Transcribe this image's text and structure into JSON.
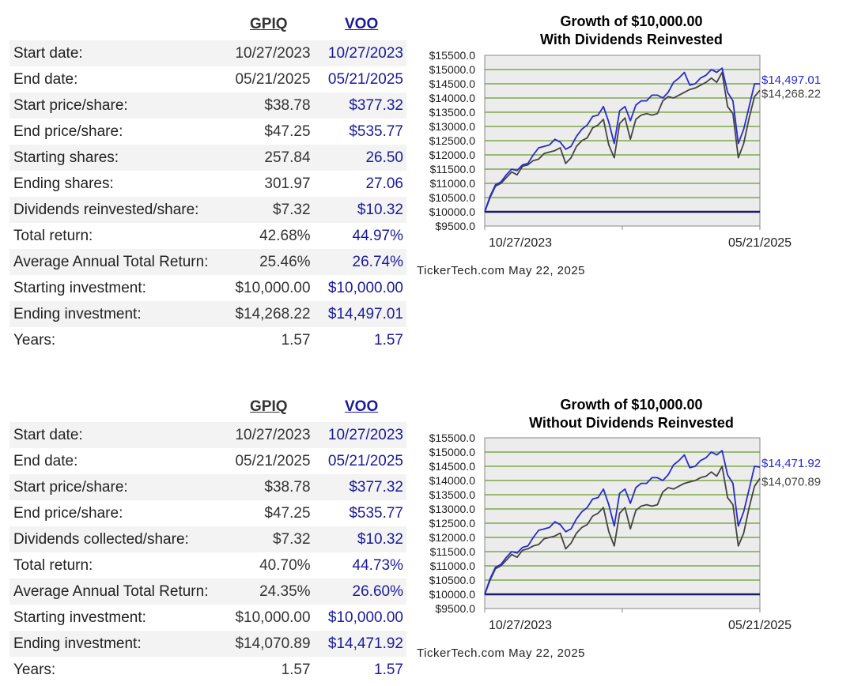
{
  "sections": [
    {
      "headers": {
        "gpiq": "GPIQ",
        "voo": "VOO"
      },
      "rows": [
        {
          "label": "Start date:",
          "gpiq": "10/27/2023",
          "voo": "10/27/2023"
        },
        {
          "label": "End date:",
          "gpiq": "05/21/2025",
          "voo": "05/21/2025"
        },
        {
          "label": "Start price/share:",
          "gpiq": "$38.78",
          "voo": "$377.32"
        },
        {
          "label": "End price/share:",
          "gpiq": "$47.25",
          "voo": "$535.77"
        },
        {
          "label": "Starting shares:",
          "gpiq": "257.84",
          "voo": "26.50"
        },
        {
          "label": "Ending shares:",
          "gpiq": "301.97",
          "voo": "27.06"
        },
        {
          "label": "Dividends reinvested/share:",
          "gpiq": "$7.32",
          "voo": "$10.32"
        },
        {
          "label": "Total return:",
          "gpiq": "42.68%",
          "voo": "44.97%"
        },
        {
          "label": "Average Annual Total Return:",
          "gpiq": "25.46%",
          "voo": "26.74%"
        },
        {
          "label": "Starting investment:",
          "gpiq": "$10,000.00",
          "voo": "$10,000.00"
        },
        {
          "label": "Ending investment:",
          "gpiq": "$14,268.22",
          "voo": "$14,497.01"
        },
        {
          "label": "Years:",
          "gpiq": "1.57",
          "voo": "1.57"
        }
      ],
      "chart_title_line1": "Growth of $10,000.00",
      "chart_title_line2": "With Dividends Reinvested",
      "credit": "TickerTech.com  May 22, 2025"
    },
    {
      "headers": {
        "gpiq": "GPIQ",
        "voo": "VOO"
      },
      "rows": [
        {
          "label": "Start date:",
          "gpiq": "10/27/2023",
          "voo": "10/27/2023"
        },
        {
          "label": "End date:",
          "gpiq": "05/21/2025",
          "voo": "05/21/2025"
        },
        {
          "label": "Start price/share:",
          "gpiq": "$38.78",
          "voo": "$377.32"
        },
        {
          "label": "End price/share:",
          "gpiq": "$47.25",
          "voo": "$535.77"
        },
        {
          "label": "Dividends collected/share:",
          "gpiq": "$7.32",
          "voo": "$10.32"
        },
        {
          "label": "Total return:",
          "gpiq": "40.70%",
          "voo": "44.73%"
        },
        {
          "label": "Average Annual Total Return:",
          "gpiq": "24.35%",
          "voo": "26.60%"
        },
        {
          "label": "Starting investment:",
          "gpiq": "$10,000.00",
          "voo": "$10,000.00"
        },
        {
          "label": "Ending investment:",
          "gpiq": "$14,070.89",
          "voo": "$14,471.92"
        },
        {
          "label": "Years:",
          "gpiq": "1.57",
          "voo": "1.57"
        }
      ],
      "chart_title_line1": "Growth of $10,000.00",
      "chart_title_line2": "Without Dividends Reinvested",
      "credit": "TickerTech.com  May 22, 2025"
    }
  ],
  "chart_data": [
    {
      "type": "line",
      "title": "Growth of $10,000.00 With Dividends Reinvested",
      "x_tick_labels": [
        "10/27/2023",
        "05/21/2025"
      ],
      "y_ticks": [
        "$15500.0",
        "$15000.0",
        "$14500.0",
        "$14000.0",
        "$13500.0",
        "$13000.0",
        "$12500.0",
        "$12000.0",
        "$11500.0",
        "$11000.0",
        "$10500.0",
        "$10000.0",
        "$9500.0"
      ],
      "ylim": [
        9500,
        15500
      ],
      "grid": true,
      "baseline": 10000,
      "colors": {
        "voo": "#2a2ad0",
        "gpiq": "#444444",
        "grid": "#6a9a2a",
        "plot_bg": "#ececec",
        "baseline": "#1a1a6a"
      },
      "series": [
        {
          "name": "VOO",
          "end_label": "$14,497.01",
          "values": [
            10000,
            10550,
            10950,
            11050,
            11300,
            11500,
            11450,
            11650,
            11700,
            12000,
            12250,
            12300,
            12350,
            12550,
            12450,
            12200,
            12300,
            12650,
            12900,
            13050,
            13350,
            13400,
            13700,
            13150,
            12400,
            13550,
            13700,
            13200,
            13750,
            13900,
            13900,
            14100,
            14100,
            14000,
            14200,
            14550,
            14700,
            14900,
            14450,
            14500,
            14700,
            14800,
            15000,
            14900,
            15050,
            14200,
            13900,
            12400,
            12900,
            13700,
            14500,
            14497
          ]
        },
        {
          "name": "GPIQ",
          "end_label": "$14,268.22",
          "values": [
            10000,
            10500,
            10900,
            11000,
            11200,
            11400,
            11300,
            11600,
            11650,
            11800,
            11850,
            12050,
            12100,
            12150,
            12250,
            11700,
            11900,
            12300,
            12500,
            12600,
            12950,
            13050,
            13250,
            12350,
            11900,
            13100,
            13300,
            12550,
            13250,
            13400,
            13450,
            13400,
            13450,
            13900,
            14050,
            14000,
            14100,
            14200,
            14300,
            14350,
            14450,
            14550,
            14700,
            14550,
            14900,
            13700,
            13450,
            11900,
            12400,
            13300,
            14050,
            14268
          ]
        }
      ]
    },
    {
      "type": "line",
      "title": "Growth of $10,000.00 Without Dividends Reinvested",
      "x_tick_labels": [
        "10/27/2023",
        "05/21/2025"
      ],
      "y_ticks": [
        "$15500.0",
        "$15000.0",
        "$14500.0",
        "$14000.0",
        "$13500.0",
        "$13000.0",
        "$12500.0",
        "$12000.0",
        "$11500.0",
        "$11000.0",
        "$10500.0",
        "$10000.0",
        "$9500.0"
      ],
      "ylim": [
        9500,
        15500
      ],
      "grid": true,
      "baseline": 10000,
      "colors": {
        "voo": "#2a2ad0",
        "gpiq": "#444444",
        "grid": "#6a9a2a",
        "plot_bg": "#ececec",
        "baseline": "#1a1a6a"
      },
      "series": [
        {
          "name": "VOO",
          "end_label": "$14,471.92",
          "values": [
            10000,
            10550,
            10950,
            11050,
            11300,
            11500,
            11450,
            11650,
            11700,
            12000,
            12250,
            12300,
            12350,
            12550,
            12450,
            12200,
            12300,
            12650,
            12900,
            13050,
            13350,
            13400,
            13700,
            13150,
            12400,
            13550,
            13700,
            13200,
            13750,
            13900,
            13900,
            14100,
            14100,
            14000,
            14200,
            14550,
            14700,
            14900,
            14450,
            14500,
            14700,
            14800,
            15000,
            14900,
            15050,
            14200,
            13900,
            12400,
            12900,
            13700,
            14500,
            14472
          ]
        },
        {
          "name": "GPIQ",
          "end_label": "$14,070.89",
          "values": [
            10000,
            10500,
            10900,
            11000,
            11200,
            11400,
            11300,
            11550,
            11600,
            11700,
            11750,
            11950,
            12000,
            12050,
            12150,
            11600,
            11800,
            12150,
            12350,
            12450,
            12750,
            12850,
            13050,
            12200,
            11700,
            12850,
            13050,
            12300,
            12950,
            13100,
            13150,
            13100,
            13150,
            13600,
            13750,
            13700,
            13800,
            13900,
            13950,
            14000,
            14100,
            14150,
            14300,
            14150,
            14500,
            13400,
            13150,
            11700,
            12150,
            13050,
            13800,
            14071
          ]
        }
      ]
    }
  ]
}
